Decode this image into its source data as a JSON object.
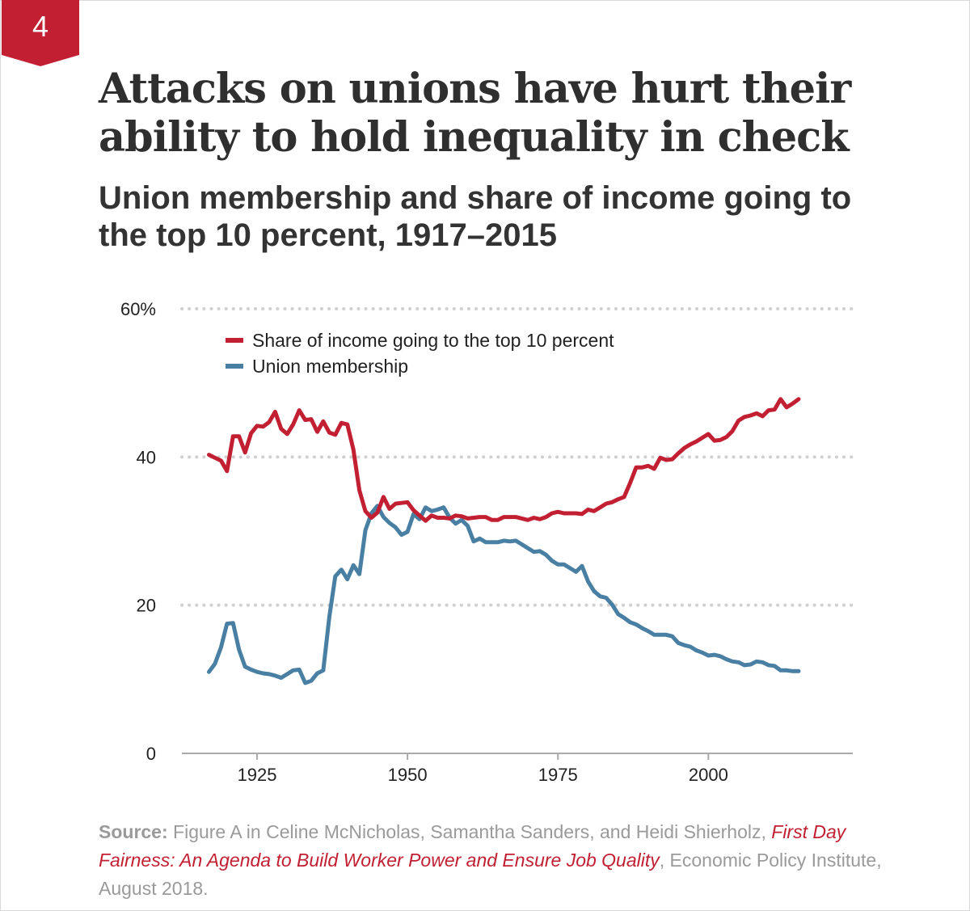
{
  "figure_number": "4",
  "title": "Attacks on unions have hurt their ability to hold inequality in check",
  "subtitle": "Union membership and share of income going to the top 10 percent, 1917–2015",
  "colors": {
    "badge": "#c22032",
    "top10": "#c22032",
    "union": "#4a7fa4",
    "grid": "#d0d0d0",
    "axis": "#aaaaaa"
  },
  "source": {
    "label": "Source:",
    "text_before": " Figure A in Celine McNicholas, Samantha Sanders, and Heidi Shierholz, ",
    "link_text": "First Day Fairness: An Agenda to Build Worker Power and Ensure Job Quality",
    "text_after": ", Economic Policy Institute, August 2018."
  },
  "chart_data": {
    "type": "line",
    "title": "",
    "xlabel": "",
    "ylabel": "",
    "xlim": [
      1912.5,
      2024
    ],
    "ylim": [
      0,
      60
    ],
    "x_ticks": [
      1925,
      1950,
      1975,
      2000
    ],
    "y_ticks": [
      0,
      20,
      40,
      60
    ],
    "y_tick_labels": [
      "0",
      "20",
      "40",
      "60%"
    ],
    "grid": "horizontal dotted",
    "legend_position": "top-left",
    "x": [
      1917,
      1918,
      1919,
      1920,
      1921,
      1922,
      1923,
      1924,
      1925,
      1926,
      1927,
      1928,
      1929,
      1930,
      1931,
      1932,
      1933,
      1934,
      1935,
      1936,
      1937,
      1938,
      1939,
      1940,
      1941,
      1942,
      1943,
      1944,
      1945,
      1946,
      1947,
      1948,
      1949,
      1950,
      1951,
      1952,
      1953,
      1954,
      1955,
      1956,
      1957,
      1958,
      1959,
      1960,
      1961,
      1962,
      1963,
      1964,
      1965,
      1966,
      1967,
      1968,
      1969,
      1970,
      1971,
      1972,
      1973,
      1974,
      1975,
      1976,
      1977,
      1978,
      1979,
      1980,
      1981,
      1982,
      1983,
      1984,
      1985,
      1986,
      1987,
      1988,
      1989,
      1990,
      1991,
      1992,
      1993,
      1994,
      1995,
      1996,
      1997,
      1998,
      1999,
      2000,
      2001,
      2002,
      2003,
      2004,
      2005,
      2006,
      2007,
      2008,
      2009,
      2010,
      2011,
      2012,
      2013,
      2014,
      2015
    ],
    "series": [
      {
        "name": "Share of income going to the top 10 percent",
        "color": "#c22032",
        "values": [
          40.3,
          39.9,
          39.5,
          38.1,
          42.8,
          42.8,
          40.6,
          43.2,
          44.2,
          44.1,
          44.7,
          46.1,
          43.8,
          43.1,
          44.4,
          46.3,
          45.0,
          45.1,
          43.4,
          44.8,
          43.3,
          43.0,
          44.6,
          44.4,
          41.0,
          35.5,
          32.7,
          31.8,
          32.5,
          34.6,
          33.0,
          33.7,
          33.8,
          33.9,
          32.8,
          32.1,
          31.4,
          32.1,
          31.8,
          31.8,
          31.7,
          32.1,
          32.0,
          31.7,
          31.8,
          31.9,
          31.9,
          31.5,
          31.5,
          31.9,
          31.9,
          31.9,
          31.7,
          31.5,
          31.8,
          31.6,
          31.9,
          32.4,
          32.6,
          32.4,
          32.4,
          32.4,
          32.3,
          32.9,
          32.7,
          33.2,
          33.7,
          33.9,
          34.3,
          34.6,
          36.5,
          38.6,
          38.6,
          38.8,
          38.4,
          39.9,
          39.6,
          39.7,
          40.5,
          41.2,
          41.7,
          42.1,
          42.6,
          43.1,
          42.2,
          42.3,
          42.7,
          43.5,
          44.9,
          45.4,
          45.6,
          45.9,
          45.5,
          46.3,
          46.4,
          47.8,
          46.7,
          47.2,
          47.8
        ]
      },
      {
        "name": "Union membership",
        "color": "#4a7fa4",
        "values": [
          11.0,
          12.1,
          14.3,
          17.5,
          17.6,
          14.0,
          11.7,
          11.3,
          11.0,
          10.8,
          10.7,
          10.5,
          10.2,
          10.7,
          11.2,
          11.3,
          9.5,
          9.8,
          10.8,
          11.2,
          18.4,
          23.9,
          24.8,
          23.5,
          25.4,
          24.2,
          30.1,
          32.4,
          33.4,
          31.9,
          31.1,
          30.5,
          29.5,
          29.9,
          32.3,
          31.6,
          33.2,
          32.7,
          32.9,
          33.2,
          31.8,
          31.0,
          31.5,
          30.7,
          28.6,
          29.0,
          28.5,
          28.5,
          28.5,
          28.7,
          28.6,
          28.7,
          28.2,
          27.7,
          27.2,
          27.3,
          26.8,
          26.0,
          25.5,
          25.5,
          25.0,
          24.5,
          25.3,
          23.2,
          21.9,
          21.2,
          21.0,
          20.1,
          18.8,
          18.3,
          17.7,
          17.4,
          16.9,
          16.5,
          16.0,
          16.0,
          16.0,
          15.8,
          14.9,
          14.6,
          14.4,
          13.9,
          13.6,
          13.2,
          13.3,
          13.1,
          12.7,
          12.4,
          12.3,
          11.9,
          12.0,
          12.4,
          12.3,
          11.9,
          11.8,
          11.2,
          11.2,
          11.1,
          11.1
        ]
      }
    ]
  }
}
